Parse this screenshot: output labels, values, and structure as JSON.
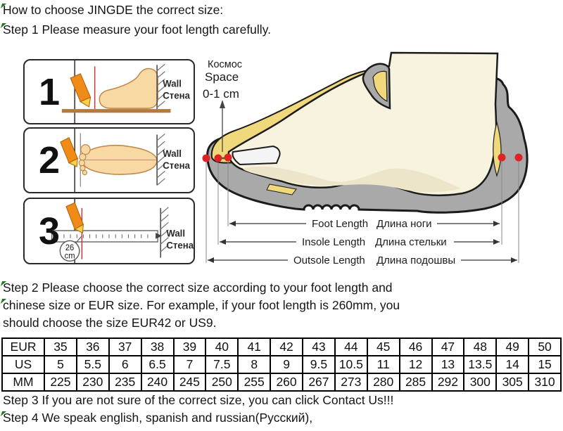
{
  "colors": {
    "shoe_gray": "#a9a9a9",
    "foot_cream": "#f8f3de",
    "foot_shade": "#ece5c9",
    "lining_yellow": "#f0d87c",
    "dot_red": "#dd2323",
    "pencil_orange": "#ef8b16",
    "floor_brown": "#b5793d",
    "mark_green": "#1f7a1f",
    "measure_red_line": "#cc3a3a"
  },
  "texts": {
    "title": "How to choose JINGDE the correct size:",
    "step1": "Step 1 Please measure your foot length carefully.",
    "step2_line1": "Step 2 Please choose the correct size according to your foot length and",
    "step2_line2": "chinese size or EUR size. For example, if your foot length is 260mm, you",
    "step2_line3": "should choose the size EUR42 or US9.",
    "step3": "Step 3 If you are not sure of the correct size, you can click Contact Us!!!",
    "step4": "Step 4 We speak english, spanish and russian(Русский),"
  },
  "measure_steps": [
    {
      "number": "1",
      "wall_en": "Wall",
      "wall_ru": "Стена"
    },
    {
      "number": "2",
      "wall_en": "Wall",
      "wall_ru": "Стена"
    },
    {
      "number": "3",
      "wall_en": "Wall",
      "wall_ru": "Стена",
      "ruler_value": "26",
      "ruler_unit": "cm"
    }
  ],
  "shoe": {
    "space_ru": "Космос",
    "space_en": "Space",
    "space_value": "0-1 cm",
    "measurements": [
      {
        "en": "Foot Length",
        "ru": "Длина ноги"
      },
      {
        "en": "Insole Length",
        "ru": "Длина стельки"
      },
      {
        "en": "Outsole Length",
        "ru": "Длина подошвы"
      }
    ]
  },
  "size_table": {
    "rows": [
      {
        "header": "EUR",
        "values": [
          "35",
          "36",
          "37",
          "38",
          "39",
          "40",
          "41",
          "42",
          "43",
          "44",
          "45",
          "46",
          "47",
          "48",
          "49",
          "50"
        ]
      },
      {
        "header": "US",
        "values": [
          "5",
          "5.5",
          "6",
          "6.5",
          "7",
          "7.5",
          "8",
          "9",
          "9.5",
          "10.5",
          "11",
          "12",
          "13",
          "13.5",
          "14",
          "15"
        ]
      },
      {
        "header": "MM",
        "values": [
          "225",
          "230",
          "235",
          "240",
          "245",
          "250",
          "255",
          "260",
          "267",
          "273",
          "280",
          "285",
          "292",
          "300",
          "305",
          "310"
        ]
      }
    ]
  }
}
